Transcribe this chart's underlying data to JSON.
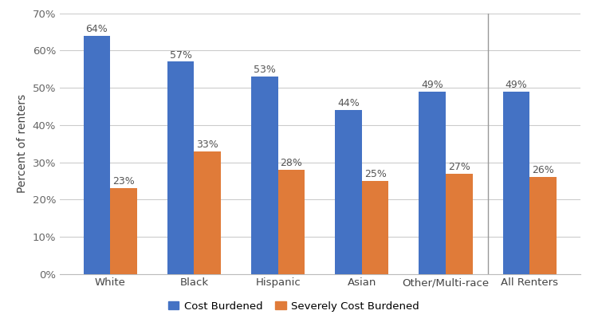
{
  "categories": [
    "White",
    "Black",
    "Hispanic",
    "Asian",
    "Other/Multi-race",
    "All Renters"
  ],
  "cost_burdened": [
    0.64,
    0.57,
    0.53,
    0.44,
    0.49,
    0.49
  ],
  "severely_cost_burdened": [
    0.23,
    0.33,
    0.28,
    0.25,
    0.27,
    0.26
  ],
  "cost_burdened_labels": [
    "64%",
    "57%",
    "53%",
    "44%",
    "49%",
    "49%"
  ],
  "severely_labels": [
    "23%",
    "33%",
    "28%",
    "25%",
    "27%",
    "26%"
  ],
  "bar_color_blue": "#4472C4",
  "bar_color_orange": "#E07B39",
  "ylabel": "Percent of renters",
  "ylim": [
    0,
    0.7
  ],
  "yticks": [
    0.0,
    0.1,
    0.2,
    0.3,
    0.4,
    0.5,
    0.6,
    0.7
  ],
  "ytick_labels": [
    "0%",
    "10%",
    "20%",
    "30%",
    "40%",
    "50%",
    "60%",
    "70%"
  ],
  "legend_labels": [
    "Cost Burdened",
    "Severely Cost Burdened"
  ],
  "bar_width": 0.32,
  "background_color": "#ffffff",
  "grid_color": "#cccccc",
  "label_fontsize": 9,
  "tick_fontsize": 9.5,
  "ylabel_fontsize": 10
}
